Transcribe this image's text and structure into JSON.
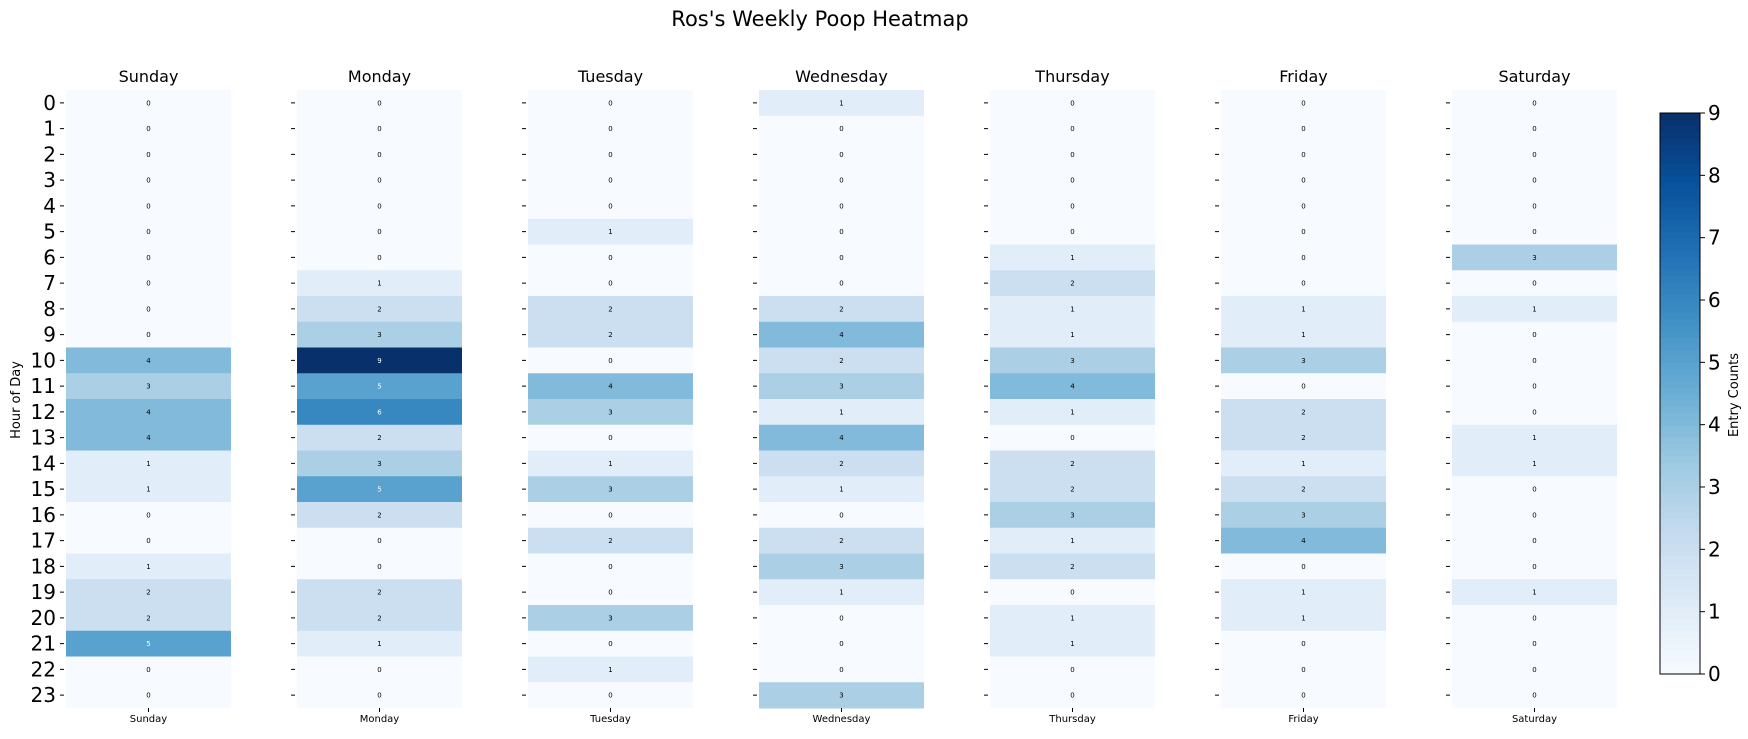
{
  "chart_data": {
    "type": "heatmap",
    "title": "Ros's Weekly Poop Heatmap",
    "ylabel": "Hour of Day",
    "colorbar_label": "Entry Counts",
    "colormap": "Blues",
    "vmin": 0,
    "vmax": 9,
    "colorbar_ticks": [
      0,
      1,
      2,
      3,
      4,
      5,
      6,
      7,
      8,
      9
    ],
    "hours": [
      0,
      1,
      2,
      3,
      4,
      5,
      6,
      7,
      8,
      9,
      10,
      11,
      12,
      13,
      14,
      15,
      16,
      17,
      18,
      19,
      20,
      21,
      22,
      23
    ],
    "days": [
      {
        "name": "Sunday",
        "values": [
          0,
          0,
          0,
          0,
          0,
          0,
          0,
          0,
          0,
          0,
          4,
          3,
          4,
          4,
          1,
          1,
          0,
          0,
          1,
          2,
          2,
          5,
          0,
          0
        ]
      },
      {
        "name": "Monday",
        "values": [
          0,
          0,
          0,
          0,
          0,
          0,
          0,
          1,
          2,
          3,
          9,
          5,
          6,
          2,
          3,
          5,
          2,
          0,
          0,
          2,
          2,
          1,
          0,
          0
        ]
      },
      {
        "name": "Tuesday",
        "values": [
          0,
          0,
          0,
          0,
          0,
          1,
          0,
          0,
          2,
          2,
          0,
          4,
          3,
          0,
          1,
          3,
          0,
          2,
          0,
          0,
          3,
          0,
          1,
          0
        ]
      },
      {
        "name": "Wednesday",
        "values": [
          1,
          0,
          0,
          0,
          0,
          0,
          0,
          0,
          2,
          4,
          2,
          3,
          1,
          4,
          2,
          1,
          0,
          2,
          3,
          1,
          0,
          0,
          0,
          3
        ]
      },
      {
        "name": "Thursday",
        "values": [
          0,
          0,
          0,
          0,
          0,
          0,
          1,
          2,
          1,
          1,
          3,
          4,
          1,
          0,
          2,
          2,
          3,
          1,
          2,
          0,
          1,
          1,
          0,
          0
        ]
      },
      {
        "name": "Friday",
        "values": [
          0,
          0,
          0,
          0,
          0,
          0,
          0,
          0,
          1,
          1,
          3,
          0,
          2,
          2,
          1,
          2,
          3,
          4,
          0,
          1,
          1,
          0,
          0,
          0
        ]
      },
      {
        "name": "Saturday",
        "values": [
          0,
          0,
          0,
          0,
          0,
          0,
          3,
          0,
          1,
          0,
          0,
          0,
          0,
          1,
          1,
          0,
          0,
          0,
          0,
          1,
          0,
          0,
          0,
          0
        ]
      }
    ]
  }
}
